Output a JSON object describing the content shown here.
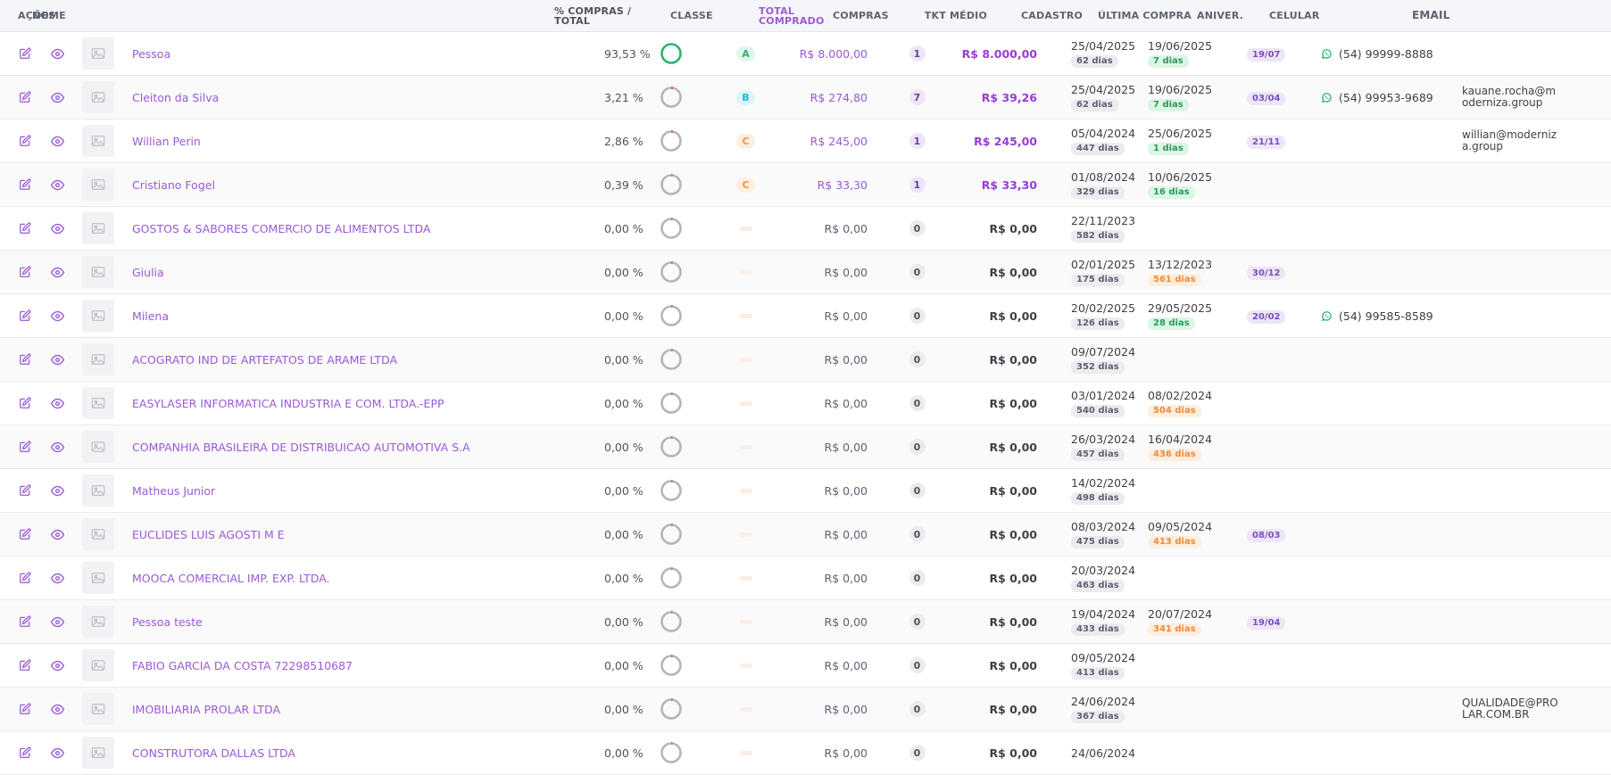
{
  "colors": {
    "accent_purple": "#9b59d6",
    "class_a": "#2fb26a",
    "class_b": "#18b7d8",
    "class_c": "#f3953e"
  },
  "headers": {
    "acoes": "AÇÕES",
    "nome": "NOME",
    "pct": "% COMPRAS / TOTAL",
    "classe": "CLASSE",
    "total": "TOTAL COMPRADO",
    "compras": "COMPRAS",
    "tkt": "TKT MÉDIO",
    "cadastro": "CADASTRO",
    "ultima": "ÚLTIMA COMPRA",
    "aniver": "ANIVER.",
    "celular": "CELULAR",
    "email": "EMAIL"
  },
  "rows": [
    {
      "name": "Pessoa",
      "pct": "93,53 %",
      "pct_value": 93.53,
      "classe": "A",
      "total": "R$ 8.000,00",
      "compras": "1",
      "tkt": "R$ 8.000,00",
      "cadastro": "25/04/2025",
      "cadastro_dias": "62 dias",
      "ultima": "19/06/2025",
      "ultima_dias": "7 dias",
      "ultima_tone": "green",
      "aniver": "19/07",
      "celular": "(54) 99999-8888",
      "email": ""
    },
    {
      "name": "Cleiton da Silva",
      "pct": "3,21 %",
      "pct_value": 3.21,
      "classe": "B",
      "total": "R$ 274,80",
      "compras": "7",
      "tkt": "R$ 39,26",
      "cadastro": "25/04/2025",
      "cadastro_dias": "62 dias",
      "ultima": "19/06/2025",
      "ultima_dias": "7 dias",
      "ultima_tone": "green",
      "aniver": "03/04",
      "celular": "(54) 99953-9689",
      "email": "kauane.rocha@moderniza.group"
    },
    {
      "name": "Willian Perin",
      "pct": "2,86 %",
      "pct_value": 2.86,
      "classe": "C",
      "total": "R$ 245,00",
      "compras": "1",
      "tkt": "R$ 245,00",
      "cadastro": "05/04/2024",
      "cadastro_dias": "447 dias",
      "ultima": "25/06/2025",
      "ultima_dias": "1 dias",
      "ultima_tone": "green",
      "aniver": "21/11",
      "celular": "",
      "email": "willian@moderniza.group"
    },
    {
      "name": "Cristiano Fogel",
      "pct": "0,39 %",
      "pct_value": 0.39,
      "classe": "C",
      "total": "R$ 33,30",
      "compras": "1",
      "tkt": "R$ 33,30",
      "cadastro": "01/08/2024",
      "cadastro_dias": "329 dias",
      "ultima": "10/06/2025",
      "ultima_dias": "16 dias",
      "ultima_tone": "green",
      "aniver": "",
      "celular": "",
      "email": ""
    },
    {
      "name": "GOSTOS & SABORES COMERCIO DE ALIMENTOS LTDA",
      "pct": "0,00 %",
      "pct_value": 0,
      "classe": "",
      "total": "R$ 0,00",
      "compras": "0",
      "tkt": "R$ 0,00",
      "cadastro": "22/11/2023",
      "cadastro_dias": "582 dias",
      "ultima": "",
      "ultima_dias": "",
      "ultima_tone": "",
      "aniver": "",
      "celular": "",
      "email": ""
    },
    {
      "name": "Giulia",
      "pct": "0,00 %",
      "pct_value": 0,
      "classe": "",
      "total": "R$ 0,00",
      "compras": "0",
      "tkt": "R$ 0,00",
      "cadastro": "02/01/2025",
      "cadastro_dias": "175 dias",
      "ultima": "13/12/2023",
      "ultima_dias": "561 dias",
      "ultima_tone": "orange",
      "aniver": "30/12",
      "celular": "",
      "email": ""
    },
    {
      "name": "Milena",
      "pct": "0,00 %",
      "pct_value": 0,
      "classe": "",
      "total": "R$ 0,00",
      "compras": "0",
      "tkt": "R$ 0,00",
      "cadastro": "20/02/2025",
      "cadastro_dias": "126 dias",
      "ultima": "29/05/2025",
      "ultima_dias": "28 dias",
      "ultima_tone": "green",
      "aniver": "20/02",
      "celular": "(54) 99585-8589",
      "email": ""
    },
    {
      "name": "ACOGRATO IND DE ARTEFATOS DE ARAME LTDA",
      "pct": "0,00 %",
      "pct_value": 0,
      "classe": "",
      "total": "R$ 0,00",
      "compras": "0",
      "tkt": "R$ 0,00",
      "cadastro": "09/07/2024",
      "cadastro_dias": "352 dias",
      "ultima": "",
      "ultima_dias": "",
      "ultima_tone": "",
      "aniver": "",
      "celular": "",
      "email": ""
    },
    {
      "name": "EASYLASER INFORMATICA INDUSTRIA E COM. LTDA.-EPP",
      "pct": "0,00 %",
      "pct_value": 0,
      "classe": "",
      "total": "R$ 0,00",
      "compras": "0",
      "tkt": "R$ 0,00",
      "cadastro": "03/01/2024",
      "cadastro_dias": "540 dias",
      "ultima": "08/02/2024",
      "ultima_dias": "504 dias",
      "ultima_tone": "orange",
      "aniver": "",
      "celular": "",
      "email": ""
    },
    {
      "name": "COMPANHIA BRASILEIRA DE DISTRIBUICAO AUTOMOTIVA S.A",
      "pct": "0,00 %",
      "pct_value": 0,
      "classe": "",
      "total": "R$ 0,00",
      "compras": "0",
      "tkt": "R$ 0,00",
      "cadastro": "26/03/2024",
      "cadastro_dias": "457 dias",
      "ultima": "16/04/2024",
      "ultima_dias": "436 dias",
      "ultima_tone": "orange",
      "aniver": "",
      "celular": "",
      "email": ""
    },
    {
      "name": "Matheus Junior",
      "pct": "0,00 %",
      "pct_value": 0,
      "classe": "",
      "total": "R$ 0,00",
      "compras": "0",
      "tkt": "R$ 0,00",
      "cadastro": "14/02/2024",
      "cadastro_dias": "498 dias",
      "ultima": "",
      "ultima_dias": "",
      "ultima_tone": "",
      "aniver": "",
      "celular": "",
      "email": ""
    },
    {
      "name": "EUCLIDES LUIS AGOSTI M E",
      "pct": "0,00 %",
      "pct_value": 0,
      "classe": "",
      "total": "R$ 0,00",
      "compras": "0",
      "tkt": "R$ 0,00",
      "cadastro": "08/03/2024",
      "cadastro_dias": "475 dias",
      "ultima": "09/05/2024",
      "ultima_dias": "413 dias",
      "ultima_tone": "orange",
      "aniver": "08/03",
      "celular": "",
      "email": ""
    },
    {
      "name": "MOOCA COMERCIAL IMP. EXP. LTDA.",
      "pct": "0,00 %",
      "pct_value": 0,
      "classe": "",
      "total": "R$ 0,00",
      "compras": "0",
      "tkt": "R$ 0,00",
      "cadastro": "20/03/2024",
      "cadastro_dias": "463 dias",
      "ultima": "",
      "ultima_dias": "",
      "ultima_tone": "",
      "aniver": "",
      "celular": "",
      "email": ""
    },
    {
      "name": "Pessoa teste",
      "pct": "0,00 %",
      "pct_value": 0,
      "classe": "",
      "total": "R$ 0,00",
      "compras": "0",
      "tkt": "R$ 0,00",
      "cadastro": "19/04/2024",
      "cadastro_dias": "433 dias",
      "ultima": "20/07/2024",
      "ultima_dias": "341 dias",
      "ultima_tone": "orange",
      "aniver": "19/04",
      "celular": "",
      "email": ""
    },
    {
      "name": "FABIO GARCIA DA COSTA 72298510687",
      "pct": "0,00 %",
      "pct_value": 0,
      "classe": "",
      "total": "R$ 0,00",
      "compras": "0",
      "tkt": "R$ 0,00",
      "cadastro": "09/05/2024",
      "cadastro_dias": "413 dias",
      "ultima": "",
      "ultima_dias": "",
      "ultima_tone": "",
      "aniver": "",
      "celular": "",
      "email": ""
    },
    {
      "name": "IMOBILIARIA PROLAR LTDA",
      "pct": "0,00 %",
      "pct_value": 0,
      "classe": "",
      "total": "R$ 0,00",
      "compras": "0",
      "tkt": "R$ 0,00",
      "cadastro": "24/06/2024",
      "cadastro_dias": "367 dias",
      "ultima": "",
      "ultima_dias": "",
      "ultima_tone": "",
      "aniver": "",
      "celular": "",
      "email": "QUALIDADE@PROLAR.COM.BR"
    },
    {
      "name": "CONSTRUTORA DALLAS LTDA",
      "pct": "0,00 %",
      "pct_value": 0,
      "classe": "",
      "total": "R$ 0,00",
      "compras": "0",
      "tkt": "R$ 0,00",
      "cadastro": "24/06/2024",
      "cadastro_dias": "",
      "ultima": "",
      "ultima_dias": "",
      "ultima_tone": "",
      "aniver": "",
      "celular": "",
      "email": ""
    }
  ]
}
